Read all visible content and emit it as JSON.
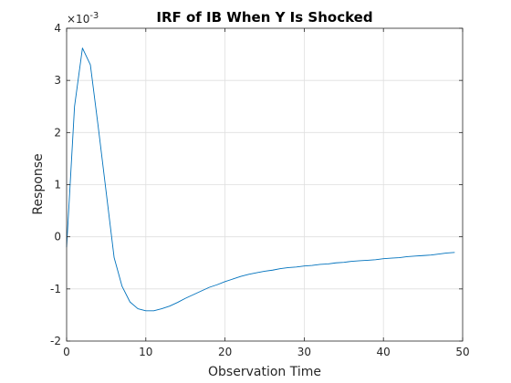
{
  "chart_data": {
    "type": "line",
    "title": "IRF of IB When Y Is Shocked",
    "xlabel": "Observation Time",
    "ylabel": "Response",
    "y_exponent_base": "×10",
    "y_exponent_power": "-3",
    "xlim": [
      0,
      50
    ],
    "ylim": [
      -2,
      4
    ],
    "xticks": [
      0,
      10,
      20,
      30,
      40,
      50
    ],
    "yticks": [
      -2,
      -1,
      0,
      1,
      2,
      3,
      4
    ],
    "grid": true,
    "line_color": "#0072BD",
    "series": [
      {
        "x": [
          0,
          1,
          2,
          3,
          4,
          5,
          6,
          7,
          8,
          9,
          10,
          11,
          12,
          13,
          14,
          15,
          16,
          17,
          18,
          19,
          20,
          21,
          22,
          23,
          24,
          25,
          26,
          27,
          28,
          29,
          30,
          31,
          32,
          33,
          34,
          35,
          36,
          37,
          38,
          39,
          40,
          41,
          42,
          43,
          44,
          45,
          46,
          47,
          48,
          49
        ],
        "y": [
          -0.2,
          2.5,
          3.62,
          3.3,
          2.1,
          0.85,
          -0.4,
          -0.95,
          -1.25,
          -1.38,
          -1.42,
          -1.42,
          -1.38,
          -1.33,
          -1.26,
          -1.18,
          -1.11,
          -1.04,
          -0.97,
          -0.92,
          -0.86,
          -0.81,
          -0.76,
          -0.72,
          -0.69,
          -0.66,
          -0.64,
          -0.61,
          -0.59,
          -0.58,
          -0.56,
          -0.55,
          -0.53,
          -0.52,
          -0.5,
          -0.49,
          -0.47,
          -0.46,
          -0.45,
          -0.44,
          -0.42,
          -0.41,
          -0.4,
          -0.38,
          -0.37,
          -0.36,
          -0.35,
          -0.33,
          -0.31,
          -0.3
        ]
      }
    ]
  }
}
